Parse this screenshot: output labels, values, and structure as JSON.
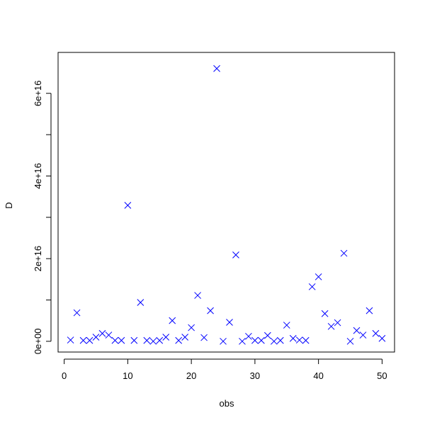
{
  "chart_data": {
    "type": "scatter",
    "x_label": "obs",
    "y_label": "D",
    "x": [
      1,
      2,
      3,
      4,
      5,
      6,
      7,
      8,
      9,
      10,
      11,
      12,
      13,
      14,
      15,
      16,
      17,
      18,
      19,
      20,
      21,
      22,
      23,
      24,
      25,
      26,
      27,
      28,
      29,
      30,
      31,
      32,
      33,
      34,
      35,
      36,
      37,
      38,
      39,
      40,
      41,
      42,
      43,
      44,
      45,
      46,
      47,
      48,
      49,
      50
    ],
    "values": [
      300000000000000.0,
      6900000000000000.0,
      200000000000000.0,
      200000000000000.0,
      1000000000000000.0,
      1900000000000000.0,
      1500000000000000.0,
      200000000000000.0,
      200000000000000.0,
      3.29e+16,
      200000000000000.0,
      9400000000000000.0,
      200000000000000.0,
      0,
      200000000000000.0,
      1000000000000000.0,
      5000000000000000.0,
      200000000000000.0,
      1000000000000000.0,
      3300000000000000.0,
      1.11e+16,
      900000000000000.0,
      7400000000000000.0,
      6.6e+16,
      0,
      4600000000000000.0,
      2.09e+16,
      0,
      1200000000000000.0,
      200000000000000.0,
      200000000000000.0,
      1400000000000000.0,
      0,
      200000000000000.0,
      3900000000000000.0,
      700000000000000.0,
      300000000000000.0,
      200000000000000.0,
      1.32e+16,
      1.56e+16,
      6700000000000000.0,
      3600000000000000.0,
      4500000000000000.0,
      2.13e+16,
      0,
      2600000000000000.0,
      1500000000000000.0,
      7400000000000000.0,
      1900000000000000.0,
      700000000000000.0
    ],
    "color": "#0000ff",
    "xlim": [
      -0.96,
      51.96
    ],
    "xticks": [
      0,
      10,
      20,
      30,
      40,
      50
    ],
    "ylim": [
      -2600000000000000.0,
      6.99e+16
    ],
    "yticks": [
      {
        "value": 0,
        "label": "0e+00"
      },
      {
        "value": 2e+16,
        "label": "2e+16"
      },
      {
        "value": 4e+16,
        "label": "4e+16"
      },
      {
        "value": 6e+16,
        "label": "6e+16"
      }
    ],
    "yminorticks": [
      1e+16,
      3e+16,
      5e+16
    ]
  }
}
